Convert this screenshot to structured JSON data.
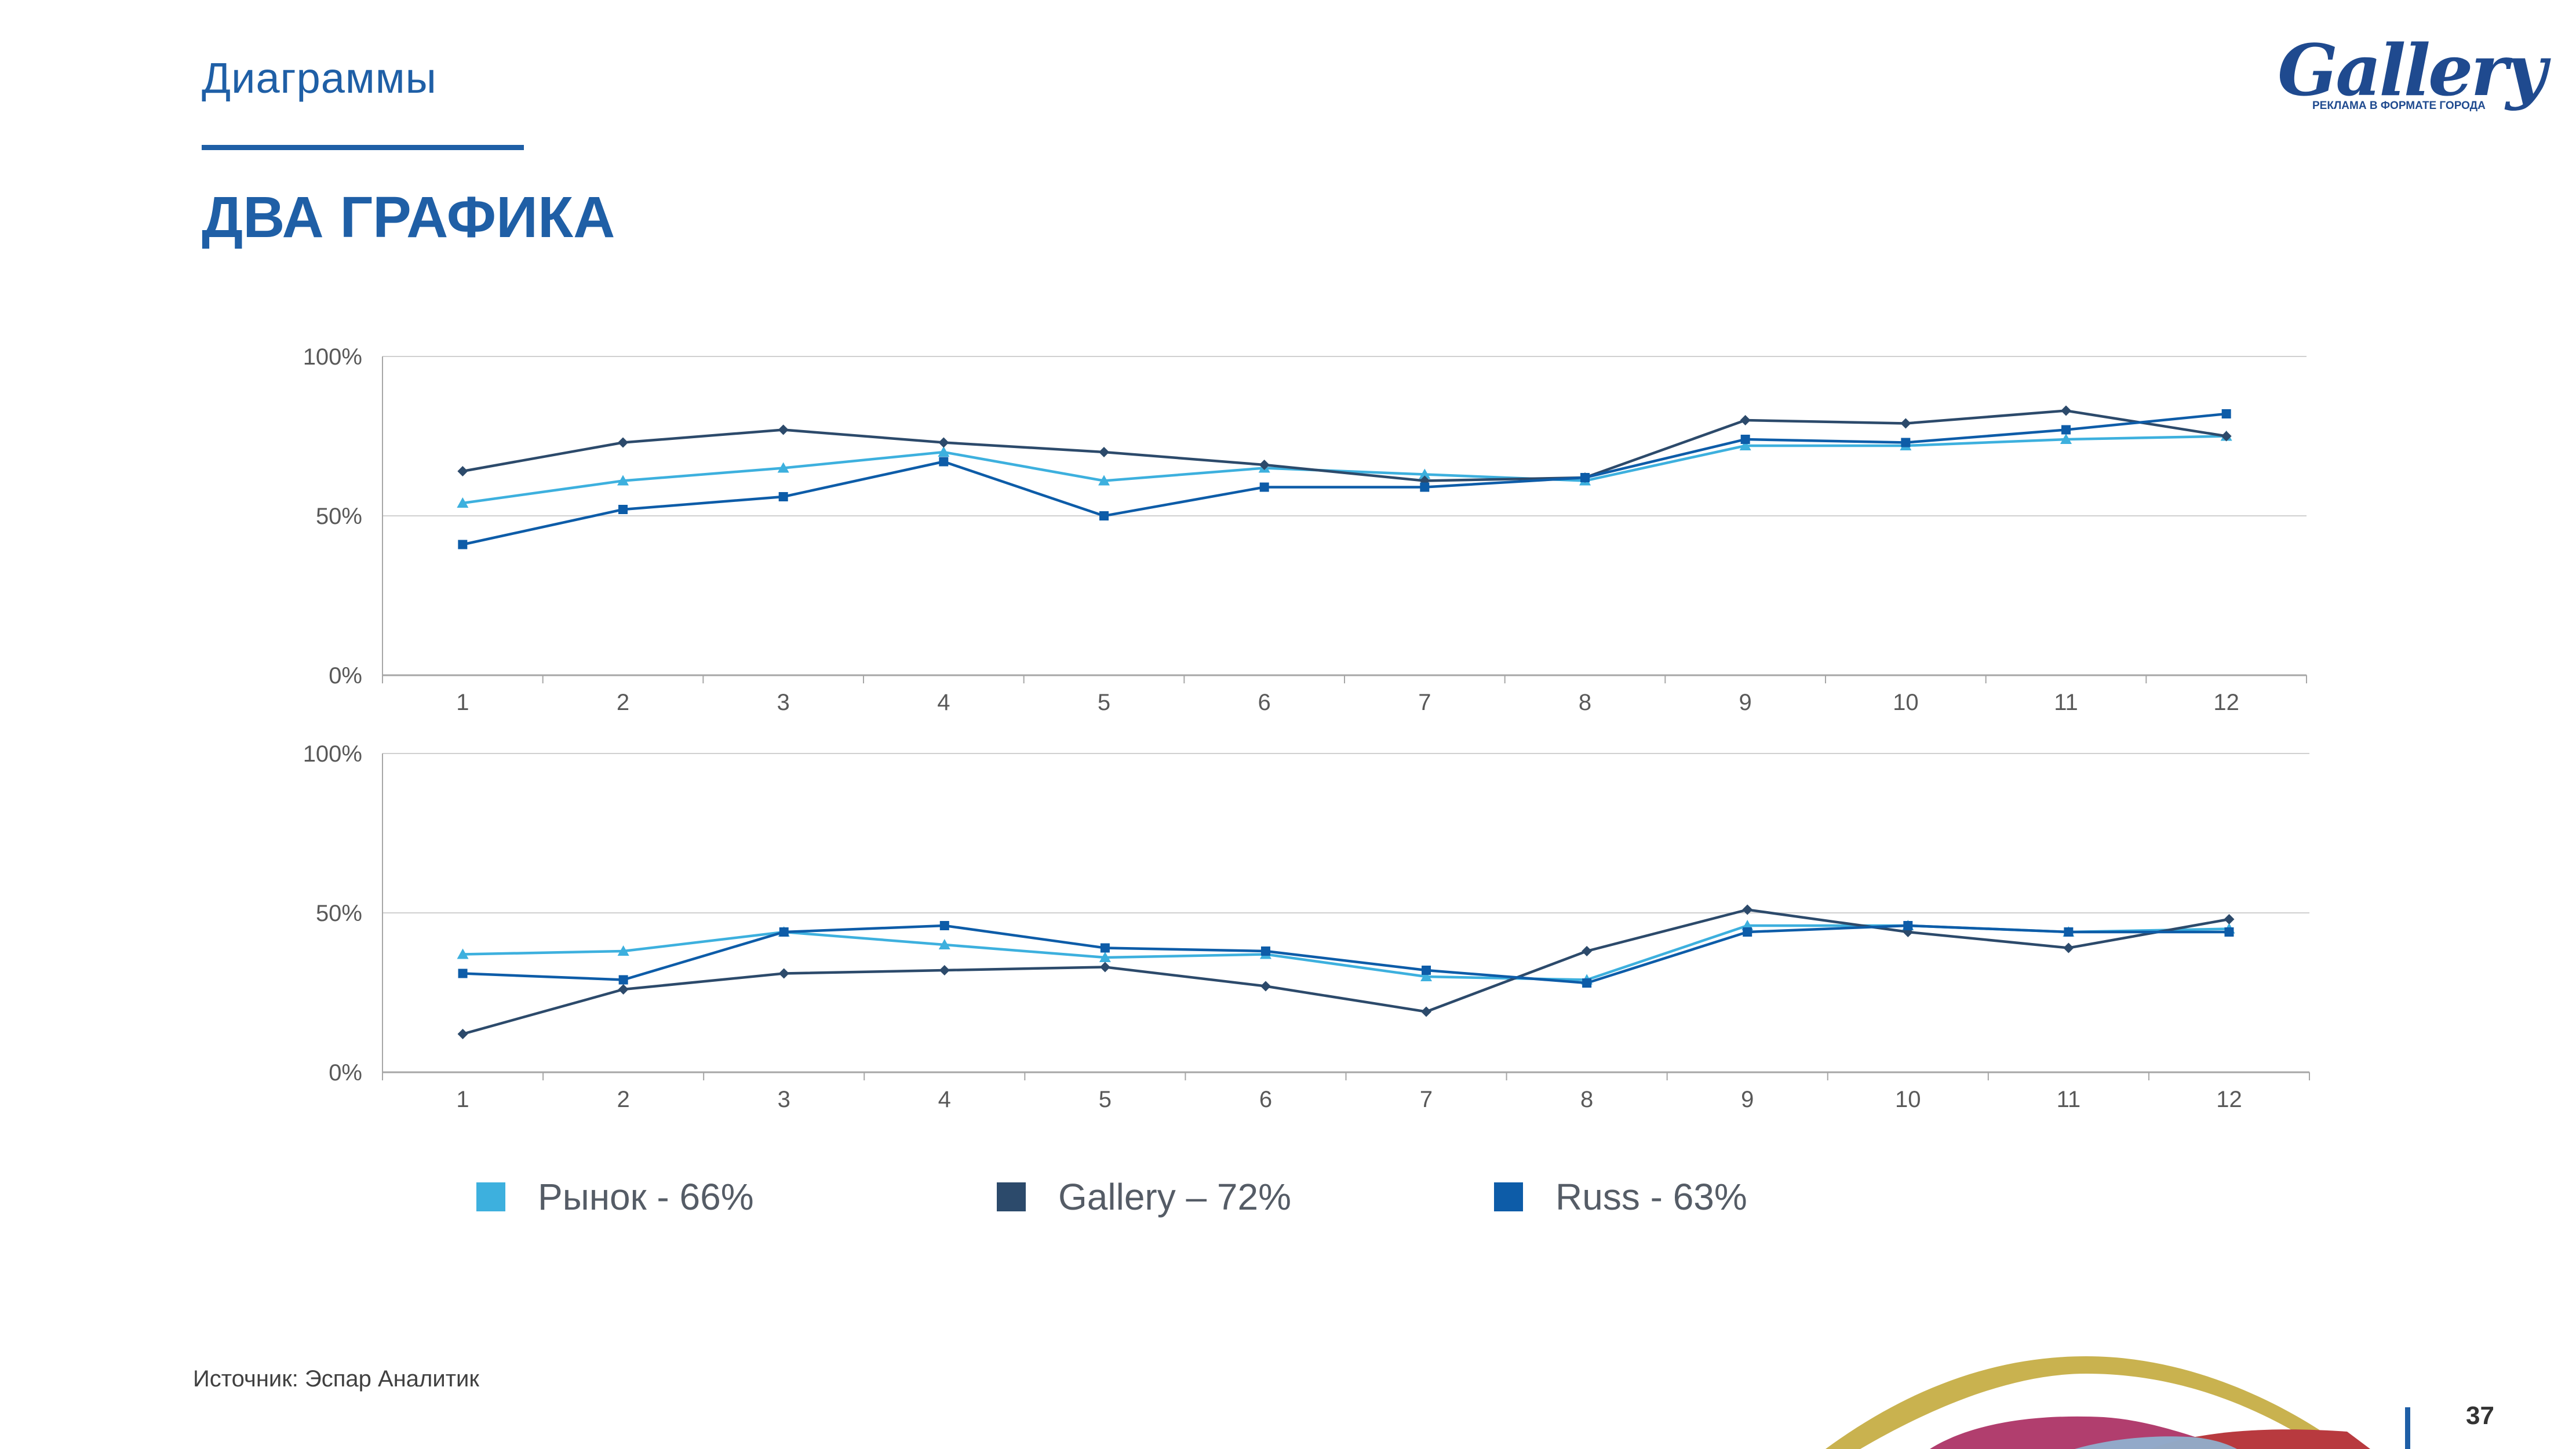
{
  "header": {
    "section": "Диаграммы",
    "title": "ДВА ГРАФИКА"
  },
  "logo": {
    "text": "Gallery",
    "tagline": "РЕКЛАМА В ФОРМАТЕ ГОРОДА"
  },
  "colors": {
    "accent": "#1f5fa6",
    "market": "#3db0de",
    "gallery": "#2c4a6b",
    "russ": "#0d5ca8"
  },
  "chart_data": [
    {
      "type": "line",
      "categories": [
        "1",
        "2",
        "3",
        "4",
        "5",
        "6",
        "7",
        "8",
        "9",
        "10",
        "11",
        "12"
      ],
      "y_ticks": [
        "0%",
        "50%",
        "100%"
      ],
      "ylim": [
        0,
        100
      ],
      "grid": true,
      "series": [
        {
          "name": "Рынок - 66%",
          "marker": "triangle",
          "values": [
            54,
            61,
            65,
            70,
            61,
            65,
            63,
            61,
            72,
            72,
            74,
            75
          ]
        },
        {
          "name": "Gallery – 72%",
          "marker": "diamond",
          "values": [
            64,
            73,
            77,
            73,
            70,
            66,
            61,
            62,
            80,
            79,
            83,
            75
          ]
        },
        {
          "name": "Russ - 63%",
          "marker": "square",
          "values": [
            41,
            52,
            56,
            67,
            50,
            59,
            59,
            62,
            74,
            73,
            77,
            82
          ]
        }
      ]
    },
    {
      "type": "line",
      "categories": [
        "1",
        "2",
        "3",
        "4",
        "5",
        "6",
        "7",
        "8",
        "9",
        "10",
        "11",
        "12"
      ],
      "y_ticks": [
        "0%",
        "50%",
        "100%"
      ],
      "ylim": [
        0,
        100
      ],
      "grid": true,
      "series": [
        {
          "name": "Рынок - 66%",
          "marker": "triangle",
          "values": [
            37,
            38,
            44,
            40,
            36,
            37,
            30,
            29,
            46,
            46,
            44,
            45
          ]
        },
        {
          "name": "Gallery – 72%",
          "marker": "diamond",
          "values": [
            12,
            26,
            31,
            32,
            33,
            27,
            19,
            38,
            51,
            44,
            39,
            48
          ]
        },
        {
          "name": "Russ - 63%",
          "marker": "square",
          "values": [
            31,
            29,
            44,
            46,
            39,
            38,
            32,
            28,
            44,
            46,
            44,
            44
          ]
        }
      ]
    }
  ],
  "legend": {
    "items": [
      {
        "label": "Рынок - 66%",
        "color": "#3db0de"
      },
      {
        "label": "Gallery – 72%",
        "color": "#2c4a6b"
      },
      {
        "label": "Russ - 63%",
        "color": "#0d5ca8"
      }
    ]
  },
  "footer": {
    "source": "Источник: Эспар Аналитик",
    "page_number": "37"
  }
}
